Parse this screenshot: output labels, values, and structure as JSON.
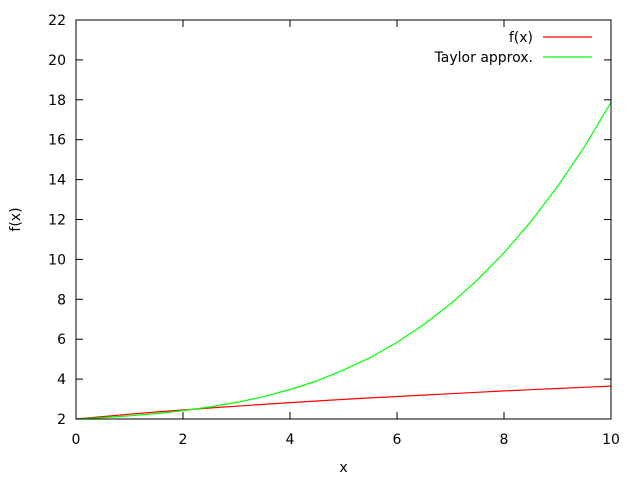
{
  "chart_data": {
    "type": "line",
    "title": "",
    "xlabel": "x",
    "ylabel": "f(x)",
    "xlim": [
      0,
      10
    ],
    "ylim": [
      2,
      22
    ],
    "xticks": [
      0,
      2,
      4,
      6,
      8,
      10
    ],
    "yticks": [
      2,
      4,
      6,
      8,
      10,
      12,
      14,
      16,
      18,
      20,
      22
    ],
    "grid": false,
    "legend_position": "top-right",
    "series": [
      {
        "name": "f(x)",
        "color": "#ff0000",
        "x": [
          0,
          0.5,
          1,
          1.5,
          2,
          2.5,
          3,
          3.5,
          4,
          4.5,
          5,
          5.5,
          6,
          6.5,
          7,
          7.5,
          8,
          8.5,
          9,
          9.5,
          10
        ],
        "y": [
          2.0,
          2.12,
          2.24,
          2.35,
          2.45,
          2.55,
          2.64,
          2.73,
          2.82,
          2.9,
          2.98,
          3.06,
          3.13,
          3.2,
          3.27,
          3.34,
          3.41,
          3.47,
          3.53,
          3.59,
          3.65
        ]
      },
      {
        "name": "Taylor approx.",
        "color": "#00ff00",
        "x": [
          0,
          0.5,
          1,
          1.5,
          2,
          2.5,
          3,
          3.5,
          4,
          4.5,
          5,
          5.5,
          6,
          6.5,
          7,
          7.5,
          8,
          8.5,
          9,
          9.5,
          10
        ],
        "y": [
          2.0,
          2.07,
          2.16,
          2.27,
          2.42,
          2.6,
          2.83,
          3.12,
          3.48,
          3.91,
          4.45,
          5.08,
          5.84,
          6.73,
          7.77,
          8.96,
          10.33,
          11.89,
          13.65,
          15.64,
          17.87
        ]
      }
    ]
  }
}
